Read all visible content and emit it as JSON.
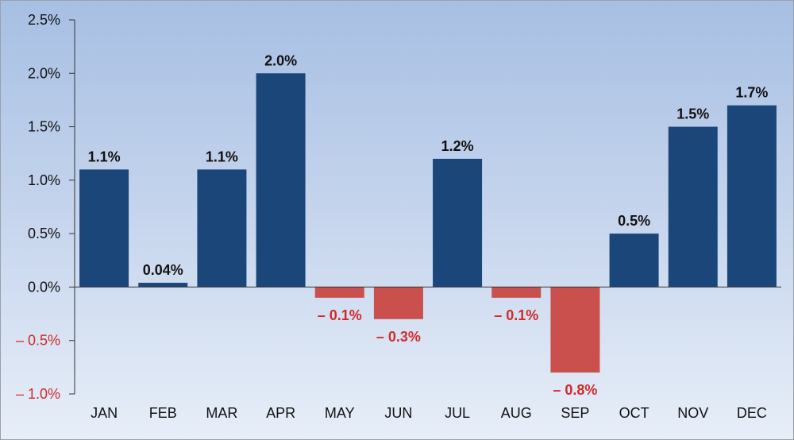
{
  "chart_data": {
    "type": "bar",
    "categories": [
      "JAN",
      "FEB",
      "MAR",
      "APR",
      "MAY",
      "JUN",
      "JUL",
      "AUG",
      "SEP",
      "OCT",
      "NOV",
      "DEC"
    ],
    "values": [
      1.1,
      0.04,
      1.1,
      2.0,
      -0.1,
      -0.3,
      1.2,
      -0.1,
      -0.8,
      0.5,
      1.5,
      1.7
    ],
    "data_labels": [
      "1.1%",
      "0.04%",
      "1.1%",
      "2.0%",
      "– 0.1%",
      "– 0.3%",
      "1.2%",
      "– 0.1%",
      "– 0.8%",
      "0.5%",
      "1.5%",
      "1.7%"
    ],
    "y_ticks": [
      2.5,
      2.0,
      1.5,
      1.0,
      0.5,
      0.0,
      -0.5,
      -1.0
    ],
    "y_tick_labels": [
      "2.5%",
      "2.0%",
      "1.5%",
      "1.0%",
      "0.5%",
      "0.0%",
      "– 0.5%",
      "– 1.0%"
    ],
    "ylim": [
      -1.0,
      2.5
    ],
    "grid": false,
    "colors": {
      "positive": "#1b467a",
      "negative": "#c9504d",
      "positive_label": "#111111",
      "negative_label": "#d22a2a",
      "axis": "#333333"
    }
  }
}
